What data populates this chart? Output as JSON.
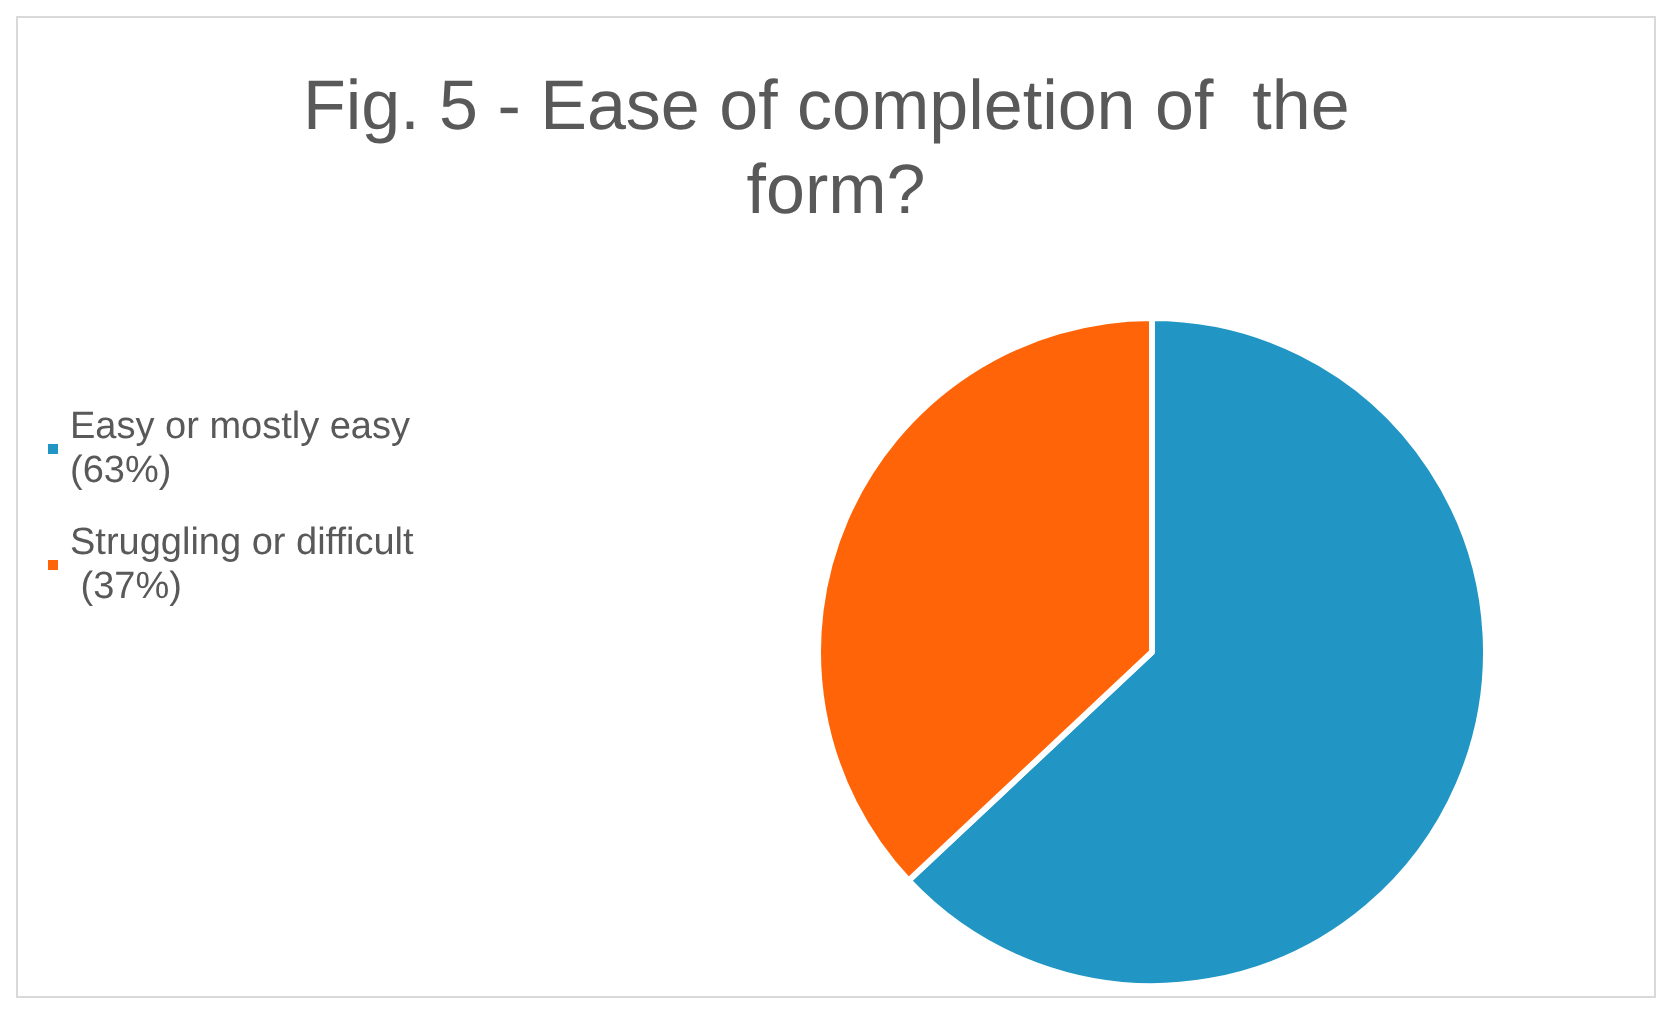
{
  "chart_data": {
    "type": "pie",
    "title": "Fig. 5 - Ease of completion of  the form?",
    "categories": [
      "Easy or mostly easy (63%)",
      "Struggling or difficult (37%)"
    ],
    "values": [
      63,
      37
    ],
    "colors": [
      "#2196c4",
      "#ff6508"
    ],
    "legend": "left"
  }
}
